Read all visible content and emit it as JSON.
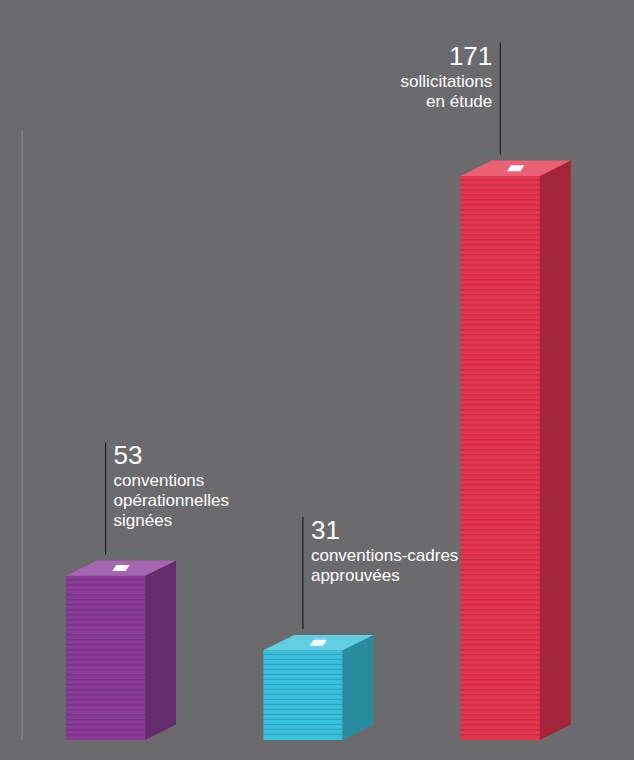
{
  "chart_data": {
    "type": "bar",
    "categories": [
      null,
      null,
      null
    ],
    "values": [
      53,
      31,
      171
    ],
    "colors": [
      "#8b3c98",
      "#38c2de",
      "#e4344f"
    ],
    "annotations": [
      [
        "conventions",
        "opérationnelles",
        "signées"
      ],
      [
        "conventions-cadres",
        "approuvées"
      ],
      [
        "sollicitations",
        "en étude"
      ]
    ],
    "ylim": [
      0,
      180
    ],
    "grid": false,
    "data_labels": true,
    "tick_labels": false
  }
}
